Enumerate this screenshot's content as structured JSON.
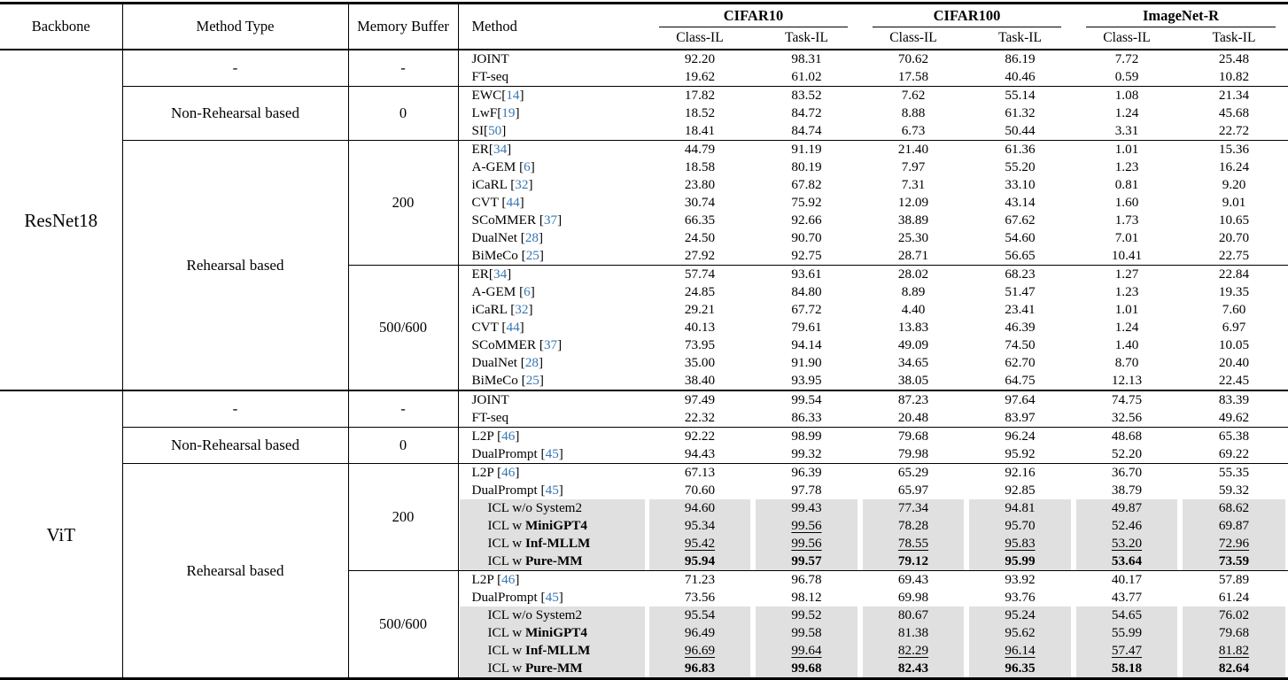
{
  "colors": {
    "citation": "#3575b4",
    "highlight": "#e0e0e0",
    "text": "#000000",
    "background": "#ffffff"
  },
  "punct": {
    "open": "[",
    "close": "]"
  },
  "header": {
    "backbone": "Backbone",
    "method_type": "Method Type",
    "memory_buffer": "Memory Buffer",
    "method": "Method",
    "groups": [
      {
        "label": "CIFAR10",
        "sub": [
          "Class-IL",
          "Task-IL"
        ]
      },
      {
        "label": "CIFAR100",
        "sub": [
          "Class-IL",
          "Task-IL"
        ]
      },
      {
        "label": "ImageNet-R",
        "sub": [
          "Class-IL",
          "Task-IL"
        ]
      }
    ]
  },
  "sections": [
    {
      "backbone": "ResNet18",
      "groups": [
        {
          "method_type": "-",
          "buffer_groups": [
            {
              "buffer": "-",
              "rows": [
                {
                  "method": "JOINT",
                  "values": [
                    "92.20",
                    "98.31",
                    "70.62",
                    "86.19",
                    "7.72",
                    "25.48"
                  ],
                  "vstyle": "pppppp",
                  "hl": false
                },
                {
                  "method": "FT-seq",
                  "values": [
                    "19.62",
                    "61.02",
                    "17.58",
                    "40.46",
                    "0.59",
                    "10.82"
                  ],
                  "vstyle": "pppppp",
                  "hl": false
                }
              ]
            }
          ]
        },
        {
          "method_type": "Non-Rehearsal based",
          "buffer_groups": [
            {
              "buffer": "0",
              "rows": [
                {
                  "method": "EWC",
                  "cite": "14",
                  "values": [
                    "17.82",
                    "83.52",
                    "7.62",
                    "55.14",
                    "1.08",
                    "21.34"
                  ],
                  "vstyle": "pppppp",
                  "hl": false
                },
                {
                  "method": "LwF",
                  "cite": "19",
                  "values": [
                    "18.52",
                    "84.72",
                    "8.88",
                    "61.32",
                    "1.24",
                    "45.68"
                  ],
                  "vstyle": "pppppp",
                  "hl": false
                },
                {
                  "method": "SI",
                  "cite": "50",
                  "values": [
                    "18.41",
                    "84.74",
                    "6.73",
                    "50.44",
                    "3.31",
                    "22.72"
                  ],
                  "vstyle": "pppppp",
                  "hl": false
                }
              ]
            }
          ]
        },
        {
          "method_type": "Rehearsal based",
          "buffer_groups": [
            {
              "buffer": "200",
              "rows": [
                {
                  "method": "ER",
                  "cite": "34",
                  "values": [
                    "44.79",
                    "91.19",
                    "21.40",
                    "61.36",
                    "1.01",
                    "15.36"
                  ],
                  "vstyle": "pppppp",
                  "hl": false
                },
                {
                  "method": "A-GEM ",
                  "cite": "6",
                  "values": [
                    "18.58",
                    "80.19",
                    "7.97",
                    "55.20",
                    "1.23",
                    "16.24"
                  ],
                  "vstyle": "pppppp",
                  "hl": false
                },
                {
                  "method": "iCaRL ",
                  "cite": "32",
                  "values": [
                    "23.80",
                    "67.82",
                    "7.31",
                    "33.10",
                    "0.81",
                    "9.20"
                  ],
                  "vstyle": "pppppp",
                  "hl": false
                },
                {
                  "method": "CVT ",
                  "cite": "44",
                  "values": [
                    "30.74",
                    "75.92",
                    "12.09",
                    "43.14",
                    "1.60",
                    "9.01"
                  ],
                  "vstyle": "pppppp",
                  "hl": false
                },
                {
                  "method": "SCoMMER ",
                  "cite": "37",
                  "values": [
                    "66.35",
                    "92.66",
                    "38.89",
                    "67.62",
                    "1.73",
                    "10.65"
                  ],
                  "vstyle": "pppppp",
                  "hl": false
                },
                {
                  "method": "DualNet ",
                  "cite": "28",
                  "values": [
                    "24.50",
                    "90.70",
                    "25.30",
                    "54.60",
                    "7.01",
                    "20.70"
                  ],
                  "vstyle": "pppppp",
                  "hl": false
                },
                {
                  "method": "BiMeCo ",
                  "cite": "25",
                  "values": [
                    "27.92",
                    "92.75",
                    "28.71",
                    "56.65",
                    "10.41",
                    "22.75"
                  ],
                  "vstyle": "pppppp",
                  "hl": false
                }
              ]
            },
            {
              "buffer": "500/600",
              "rows": [
                {
                  "method": "ER",
                  "cite": "34",
                  "values": [
                    "57.74",
                    "93.61",
                    "28.02",
                    "68.23",
                    "1.27",
                    "22.84"
                  ],
                  "vstyle": "pppppp",
                  "hl": false
                },
                {
                  "method": "A-GEM ",
                  "cite": "6",
                  "values": [
                    "24.85",
                    "84.80",
                    "8.89",
                    "51.47",
                    "1.23",
                    "19.35"
                  ],
                  "vstyle": "pppppp",
                  "hl": false
                },
                {
                  "method": "iCaRL ",
                  "cite": "32",
                  "values": [
                    "29.21",
                    "67.72",
                    "4.40",
                    "23.41",
                    "1.01",
                    "7.60"
                  ],
                  "vstyle": "pppppp",
                  "hl": false
                },
                {
                  "method": "CVT ",
                  "cite": "44",
                  "values": [
                    "40.13",
                    "79.61",
                    "13.83",
                    "46.39",
                    "1.24",
                    "6.97"
                  ],
                  "vstyle": "pppppp",
                  "hl": false
                },
                {
                  "method": "SCoMMER ",
                  "cite": "37",
                  "values": [
                    "73.95",
                    "94.14",
                    "49.09",
                    "74.50",
                    "1.40",
                    "10.05"
                  ],
                  "vstyle": "pppppp",
                  "hl": false
                },
                {
                  "method": "DualNet ",
                  "cite": "28",
                  "values": [
                    "35.00",
                    "91.90",
                    "34.65",
                    "62.70",
                    "8.70",
                    "20.40"
                  ],
                  "vstyle": "pppppp",
                  "hl": false
                },
                {
                  "method": "BiMeCo ",
                  "cite": "25",
                  "values": [
                    "38.40",
                    "93.95",
                    "38.05",
                    "64.75",
                    "12.13",
                    "22.45"
                  ],
                  "vstyle": "pppppp",
                  "hl": false
                }
              ]
            }
          ]
        }
      ]
    },
    {
      "backbone": "ViT",
      "groups": [
        {
          "method_type": "-",
          "buffer_groups": [
            {
              "buffer": "-",
              "rows": [
                {
                  "method": "JOINT",
                  "values": [
                    "97.49",
                    "99.54",
                    "87.23",
                    "97.64",
                    "74.75",
                    "83.39"
                  ],
                  "vstyle": "pppppp",
                  "hl": false
                },
                {
                  "method": "FT-seq",
                  "values": [
                    "22.32",
                    "86.33",
                    "20.48",
                    "83.97",
                    "32.56",
                    "49.62"
                  ],
                  "vstyle": "pppppp",
                  "hl": false
                }
              ]
            }
          ]
        },
        {
          "method_type": "Non-Rehearsal based",
          "buffer_groups": [
            {
              "buffer": "0",
              "rows": [
                {
                  "method": "L2P ",
                  "cite": "46",
                  "values": [
                    "92.22",
                    "98.99",
                    "79.68",
                    "96.24",
                    "48.68",
                    "65.38"
                  ],
                  "vstyle": "pppppp",
                  "hl": false
                },
                {
                  "method": "DualPrompt ",
                  "cite": "45",
                  "values": [
                    "94.43",
                    "99.32",
                    "79.98",
                    "95.92",
                    "52.20",
                    "69.22"
                  ],
                  "vstyle": "pppppp",
                  "hl": false
                }
              ]
            }
          ]
        },
        {
          "method_type": "Rehearsal based",
          "buffer_groups": [
            {
              "buffer": "200",
              "rows": [
                {
                  "method": "L2P ",
                  "cite": "46",
                  "values": [
                    "67.13",
                    "96.39",
                    "65.29",
                    "92.16",
                    "36.70",
                    "55.35"
                  ],
                  "vstyle": "pppppp",
                  "hl": false
                },
                {
                  "method": "DualPrompt ",
                  "cite": "45",
                  "values": [
                    "70.60",
                    "97.78",
                    "65.97",
                    "92.85",
                    "38.79",
                    "59.32"
                  ],
                  "vstyle": "pppppp",
                  "hl": false
                },
                {
                  "method": "ICL w/o System2",
                  "values": [
                    "94.60",
                    "99.43",
                    "77.34",
                    "94.81",
                    "49.87",
                    "68.62"
                  ],
                  "vstyle": "pppppp",
                  "hl": true
                },
                {
                  "method": "ICL w ",
                  "method_bold": "MiniGPT4",
                  "values": [
                    "95.34",
                    "99.56",
                    "78.28",
                    "95.70",
                    "52.46",
                    "69.87"
                  ],
                  "vstyle": "pupppp",
                  "hl": true
                },
                {
                  "method": "ICL w ",
                  "method_bold": "Inf-MLLM",
                  "values": [
                    "95.42",
                    "99.56",
                    "78.55",
                    "95.83",
                    "53.20",
                    "72.96"
                  ],
                  "vstyle": "uuuuuu",
                  "hl": true
                },
                {
                  "method": "ICL w ",
                  "method_bold": "Pure-MM",
                  "values": [
                    "95.94",
                    "99.57",
                    "79.12",
                    "95.99",
                    "53.64",
                    "73.59"
                  ],
                  "vstyle": "bbbbbb",
                  "hl": true
                }
              ]
            },
            {
              "buffer": "500/600",
              "rows": [
                {
                  "method": "L2P ",
                  "cite": "46",
                  "values": [
                    "71.23",
                    "96.78",
                    "69.43",
                    "93.92",
                    "40.17",
                    "57.89"
                  ],
                  "vstyle": "pppppp",
                  "hl": false
                },
                {
                  "method": "DualPrompt ",
                  "cite": "45",
                  "values": [
                    "73.56",
                    "98.12",
                    "69.98",
                    "93.76",
                    "43.77",
                    "61.24"
                  ],
                  "vstyle": "pppppp",
                  "hl": false
                },
                {
                  "method": "ICL w/o System2",
                  "values": [
                    "95.54",
                    "99.52",
                    "80.67",
                    "95.24",
                    "54.65",
                    "76.02"
                  ],
                  "vstyle": "pppppp",
                  "hl": true
                },
                {
                  "method": "ICL w ",
                  "method_bold": "MiniGPT4",
                  "values": [
                    "96.49",
                    "99.58",
                    "81.38",
                    "95.62",
                    "55.99",
                    "79.68"
                  ],
                  "vstyle": "pppppp",
                  "hl": true
                },
                {
                  "method": "ICL w ",
                  "method_bold": "Inf-MLLM",
                  "values": [
                    "96.69",
                    "99.64",
                    "82.29",
                    "96.14",
                    "57.47",
                    "81.82"
                  ],
                  "vstyle": "uuuuuu",
                  "hl": true
                },
                {
                  "method": "ICL w ",
                  "method_bold": "Pure-MM",
                  "values": [
                    "96.83",
                    "99.68",
                    "82.43",
                    "96.35",
                    "58.18",
                    "82.64"
                  ],
                  "vstyle": "bbbbbb",
                  "hl": true
                }
              ]
            }
          ]
        }
      ]
    }
  ]
}
